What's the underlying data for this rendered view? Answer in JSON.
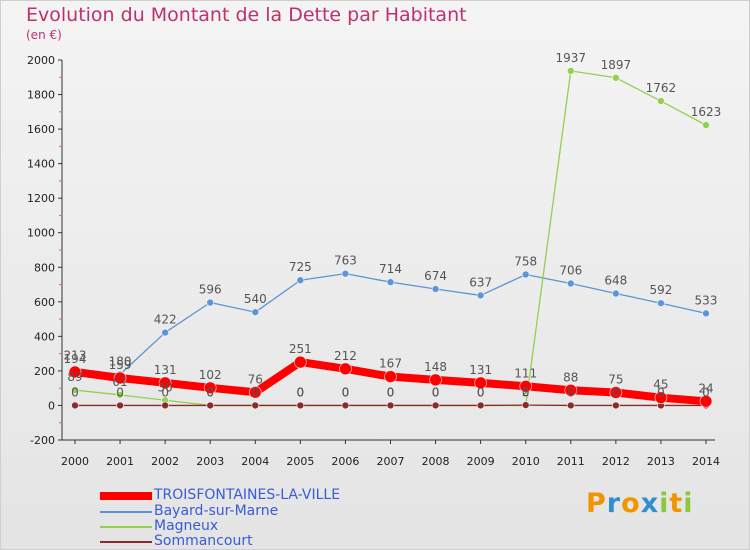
{
  "chart_data": {
    "type": "line",
    "title": "Evolution du Montant de la Dette par Habitant",
    "subtitle": "(en €)",
    "xlabel": "",
    "ylabel": "",
    "x": [
      "2000",
      "2001",
      "2002",
      "2003",
      "2004",
      "2005",
      "2006",
      "2007",
      "2008",
      "2009",
      "2010",
      "2011",
      "2012",
      "2013",
      "2014"
    ],
    "yticks": [
      "-200",
      "0",
      "200",
      "400",
      "600",
      "800",
      "1000",
      "1200",
      "1400",
      "1600",
      "1800",
      "2000"
    ],
    "ylim": [
      -200,
      2000
    ],
    "grid": false,
    "legend": "bottom-left",
    "series": [
      {
        "name": "TROISFONTAINES-LA-VILLE",
        "color": "#ff0000",
        "values": [
          194,
          159,
          131,
          102,
          76,
          251,
          212,
          167,
          148,
          131,
          111,
          88,
          75,
          45,
          24
        ],
        "labels": [
          "194",
          "159",
          "131",
          "102",
          "76",
          "251",
          "212",
          "167",
          "148",
          "131",
          "111",
          "88",
          "75",
          "45",
          "24"
        ]
      },
      {
        "name": "Bayard-sur-Marne",
        "color": "#5b95d6",
        "values": [
          213,
          180,
          422,
          596,
          540,
          725,
          763,
          714,
          674,
          637,
          758,
          706,
          648,
          592,
          533
        ],
        "labels": [
          "213",
          "180",
          "422",
          "596",
          "540",
          "725",
          "763",
          "714",
          "674",
          "637",
          "758",
          "706",
          "648",
          "592",
          "533"
        ]
      },
      {
        "name": "Magneux",
        "color": "#92d050",
        "values": [
          89,
          61,
          30,
          0,
          0,
          0,
          0,
          0,
          0,
          0,
          0,
          1937,
          1897,
          1762,
          1623
        ],
        "labels": [
          "89",
          "61",
          "30",
          "0",
          "0",
          "0",
          "0",
          "0",
          "0",
          "0",
          "0",
          "1937",
          "1897",
          "1762",
          "1623"
        ]
      },
      {
        "name": "Sommancourt",
        "color": "#8b2a2a",
        "values": [
          0,
          0,
          0,
          0,
          0,
          0,
          0,
          0,
          0,
          0,
          2,
          0,
          0,
          0,
          0
        ],
        "labels": [
          "0",
          "0",
          "0",
          "0",
          "0",
          "0",
          "0",
          "0",
          "0",
          "0",
          "2",
          "0",
          "0",
          "0",
          "0"
        ]
      }
    ]
  },
  "logo": {
    "letters": [
      "P",
      "r",
      "o",
      "x",
      "i",
      "t",
      "i"
    ],
    "colors": [
      "#f29400",
      "#2f8fd1",
      "#f29400",
      "#2f8fd1",
      "#8dc63f",
      "#f29400",
      "#8dc63f"
    ]
  }
}
